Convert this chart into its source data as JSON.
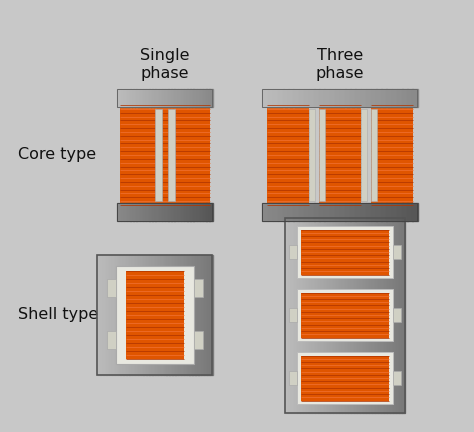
{
  "bg_color": "#c8c8c8",
  "orange_coil": "#e05500",
  "orange_hi": "#f07030",
  "orange_dark": "#b03500",
  "steel_light": "#c0c0c0",
  "steel_mid": "#999999",
  "steel_dark": "#707070",
  "white_inner": "#e8e8e0",
  "gap_color": "#d0d0c4",
  "text_color": "#111111",
  "labels": {
    "single_phase": "Single\nphase",
    "three_phase": "Three\nphase",
    "core_type": "Core type",
    "shell_type": "Shell type"
  },
  "font_size": 11.5
}
